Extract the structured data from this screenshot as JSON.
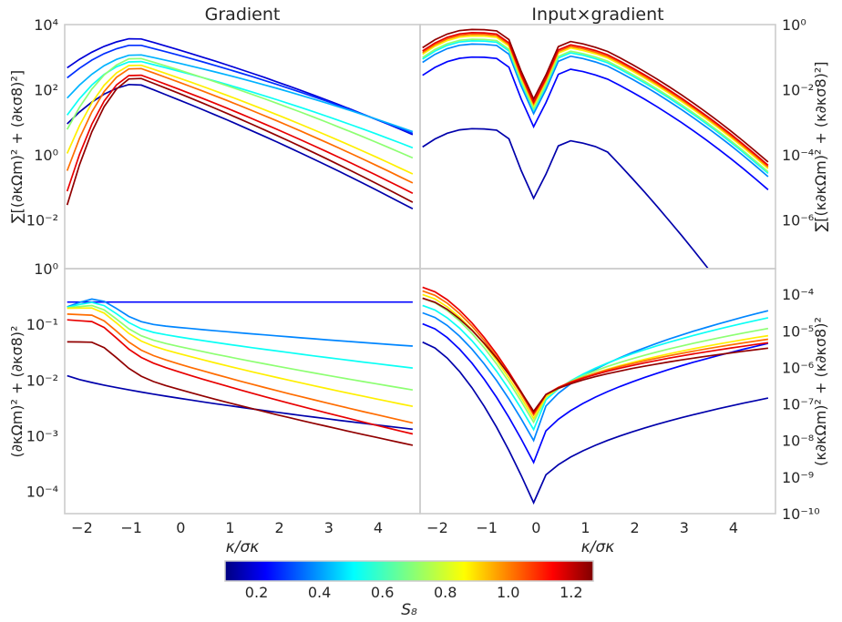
{
  "chart_data": [
    {
      "id": "gradient-top",
      "type": "line",
      "title": "Gradient",
      "xlabel": "",
      "ylabel": "∑[(∂κΩm)² + (∂κσ8)²]",
      "yscale": "log",
      "ylim_exp": [
        -3.5,
        4
      ],
      "y_ticks": [
        {
          "exp": 4,
          "label": "10⁴"
        },
        {
          "exp": 2,
          "label": "10²"
        },
        {
          "exp": 0,
          "label": "10⁰"
        },
        {
          "exp": -2,
          "label": "10⁻²"
        }
      ],
      "x": [
        -2.3,
        -2.05,
        -1.8,
        -1.55,
        -1.3,
        -1.05,
        -0.8,
        -0.55,
        -0.3,
        -0.05,
        0.2,
        0.45,
        0.7,
        0.95,
        1.2,
        1.45,
        1.7,
        1.95,
        2.2,
        2.45,
        2.7,
        2.95,
        3.2,
        3.45,
        3.7,
        3.95,
        4.2,
        4.45,
        4.7
      ],
      "ridge_x": -0.9,
      "ridge_width": 0.9,
      "series": [
        {
          "s8": 0.15,
          "peak": 2.2,
          "left": 0.9,
          "right": 0.55
        },
        {
          "s8": 0.2,
          "peak": 3.6,
          "left": 0.6,
          "right": 0.4
        },
        {
          "s8": 0.3,
          "peak": 3.4,
          "left": 0.7,
          "right": 0.36
        },
        {
          "s8": 0.45,
          "peak": 3.1,
          "left": 1.0,
          "right": 0.3
        },
        {
          "s8": 0.55,
          "peak": 2.9,
          "left": 1.3,
          "right": 0.35
        },
        {
          "s8": 0.7,
          "peak": 3.0,
          "left": 1.8,
          "right": 0.42
        },
        {
          "s8": 0.85,
          "peak": 2.8,
          "left": 2.3,
          "right": 0.47
        },
        {
          "s8": 1.0,
          "peak": 2.7,
          "left": 2.7,
          "right": 0.5
        },
        {
          "s8": 1.15,
          "peak": 2.5,
          "left": 3.1,
          "right": 0.52
        },
        {
          "s8": 1.25,
          "peak": 2.4,
          "left": 3.4,
          "right": 0.55
        }
      ]
    },
    {
      "id": "input-gradient-top",
      "type": "line",
      "title": "Input×gradient",
      "xlabel": "",
      "ylabel": "∑[(κ∂κΩm)² + (κ∂κσ8)²]",
      "yscale": "log",
      "ylim_exp": [
        -7.5,
        0
      ],
      "y_ticks": [
        {
          "exp": 0,
          "label": "10⁰"
        },
        {
          "exp": -2,
          "label": "10⁻²"
        },
        {
          "exp": -4,
          "label": "10⁻⁴"
        },
        {
          "exp": -6,
          "label": "10⁻⁶"
        }
      ],
      "dip_x": -0.05,
      "dip_depth": 2.0,
      "series": [
        {
          "s8": 0.15,
          "peak": -3.2,
          "floor": -7.3
        },
        {
          "s8": 0.25,
          "peak": -1.0,
          "floor": -2.6
        },
        {
          "s8": 0.4,
          "peak": -0.6,
          "floor": -2.2
        },
        {
          "s8": 0.55,
          "peak": -0.5,
          "floor": -2.0
        },
        {
          "s8": 0.7,
          "peak": -0.45,
          "floor": -2.1
        },
        {
          "s8": 0.85,
          "peak": -0.35,
          "floor": -2.25
        },
        {
          "s8": 1.0,
          "peak": -0.3,
          "floor": -2.35
        },
        {
          "s8": 1.15,
          "peak": -0.25,
          "floor": -2.45
        },
        {
          "s8": 1.25,
          "peak": -0.15,
          "floor": -2.55
        }
      ]
    },
    {
      "id": "gradient-bottom",
      "type": "line",
      "title": "",
      "xlabel": "κ/σκ",
      "ylabel": "(∂κΩm)² + (∂κσ8)²",
      "yscale": "log",
      "ylim_exp": [
        -4.4,
        0
      ],
      "y_ticks": [
        {
          "exp": 0,
          "label": "10⁰"
        },
        {
          "exp": -1,
          "label": "10⁻¹"
        },
        {
          "exp": -2,
          "label": "10⁻²"
        },
        {
          "exp": -3,
          "label": "10⁻³"
        },
        {
          "exp": -4,
          "label": "10⁻⁴"
        }
      ],
      "x_ticks": [
        "−2",
        "−1",
        "0",
        "1",
        "2",
        "3",
        "4"
      ],
      "series": [
        {
          "s8": 0.15,
          "start": -1.9,
          "end": -2.9
        },
        {
          "s8": 0.25,
          "start": -0.6,
          "end": -0.6
        },
        {
          "s8": 0.4,
          "start": -0.8,
          "end": -1.4
        },
        {
          "s8": 0.55,
          "start": -0.8,
          "end": -1.8
        },
        {
          "s8": 0.7,
          "start": -0.8,
          "end": -2.2
        },
        {
          "s8": 0.85,
          "start": -0.8,
          "end": -2.5
        },
        {
          "s8": 1.0,
          "start": -0.9,
          "end": -2.8
        },
        {
          "s8": 1.15,
          "start": -1.0,
          "end": -3.0
        },
        {
          "s8": 1.25,
          "start": -1.4,
          "end": -3.2
        }
      ]
    },
    {
      "id": "input-gradient-bottom",
      "type": "line",
      "title": "",
      "xlabel": "κ/σκ",
      "ylabel": "(κ∂κΩm)² + (κ∂κσ8)²",
      "yscale": "log",
      "ylim_exp": [
        -10,
        -3.3
      ],
      "y_ticks": [
        {
          "exp": -4,
          "label": "10⁻⁴"
        },
        {
          "exp": -5,
          "label": "10⁻⁵"
        },
        {
          "exp": -6,
          "label": "10⁻⁶"
        },
        {
          "exp": -7,
          "label": "10⁻⁷"
        },
        {
          "exp": -8,
          "label": "10⁻⁸"
        },
        {
          "exp": -9,
          "label": "10⁻⁹"
        },
        {
          "exp": -10,
          "label": "10⁻¹⁰"
        }
      ],
      "x_ticks": [
        "−2",
        "−1",
        "0",
        "1",
        "2",
        "3",
        "4"
      ],
      "series": [
        {
          "s8": 0.15,
          "start": -5.3,
          "dip": -9.7,
          "end": -6.8
        },
        {
          "s8": 0.25,
          "start": -4.8,
          "dip": -8.6,
          "end": -5.3
        },
        {
          "s8": 0.4,
          "start": -4.5,
          "dip": -8.0,
          "end": -4.4
        },
        {
          "s8": 0.55,
          "start": -4.3,
          "dip": -7.7,
          "end": -4.6
        },
        {
          "s8": 0.7,
          "start": -4.1,
          "dip": -7.5,
          "end": -4.9
        },
        {
          "s8": 0.85,
          "start": -4.0,
          "dip": -7.4,
          "end": -5.1
        },
        {
          "s8": 1.0,
          "start": -3.9,
          "dip": -7.3,
          "end": -5.2
        },
        {
          "s8": 1.15,
          "start": -3.8,
          "dip": -7.25,
          "end": -5.3
        },
        {
          "s8": 1.25,
          "start": -4.1,
          "dip": -7.2,
          "end": -5.45
        }
      ]
    }
  ],
  "colorbar": {
    "label": "S₈",
    "range": [
      0.1,
      1.27
    ],
    "ticks": [
      "0.2",
      "0.4",
      "0.6",
      "0.8",
      "1.0",
      "1.2"
    ],
    "tick_values": [
      0.2,
      0.4,
      0.6,
      0.8,
      1.0,
      1.2
    ],
    "colormap": "jet"
  },
  "x_range": [
    -2.35,
    4.85
  ]
}
